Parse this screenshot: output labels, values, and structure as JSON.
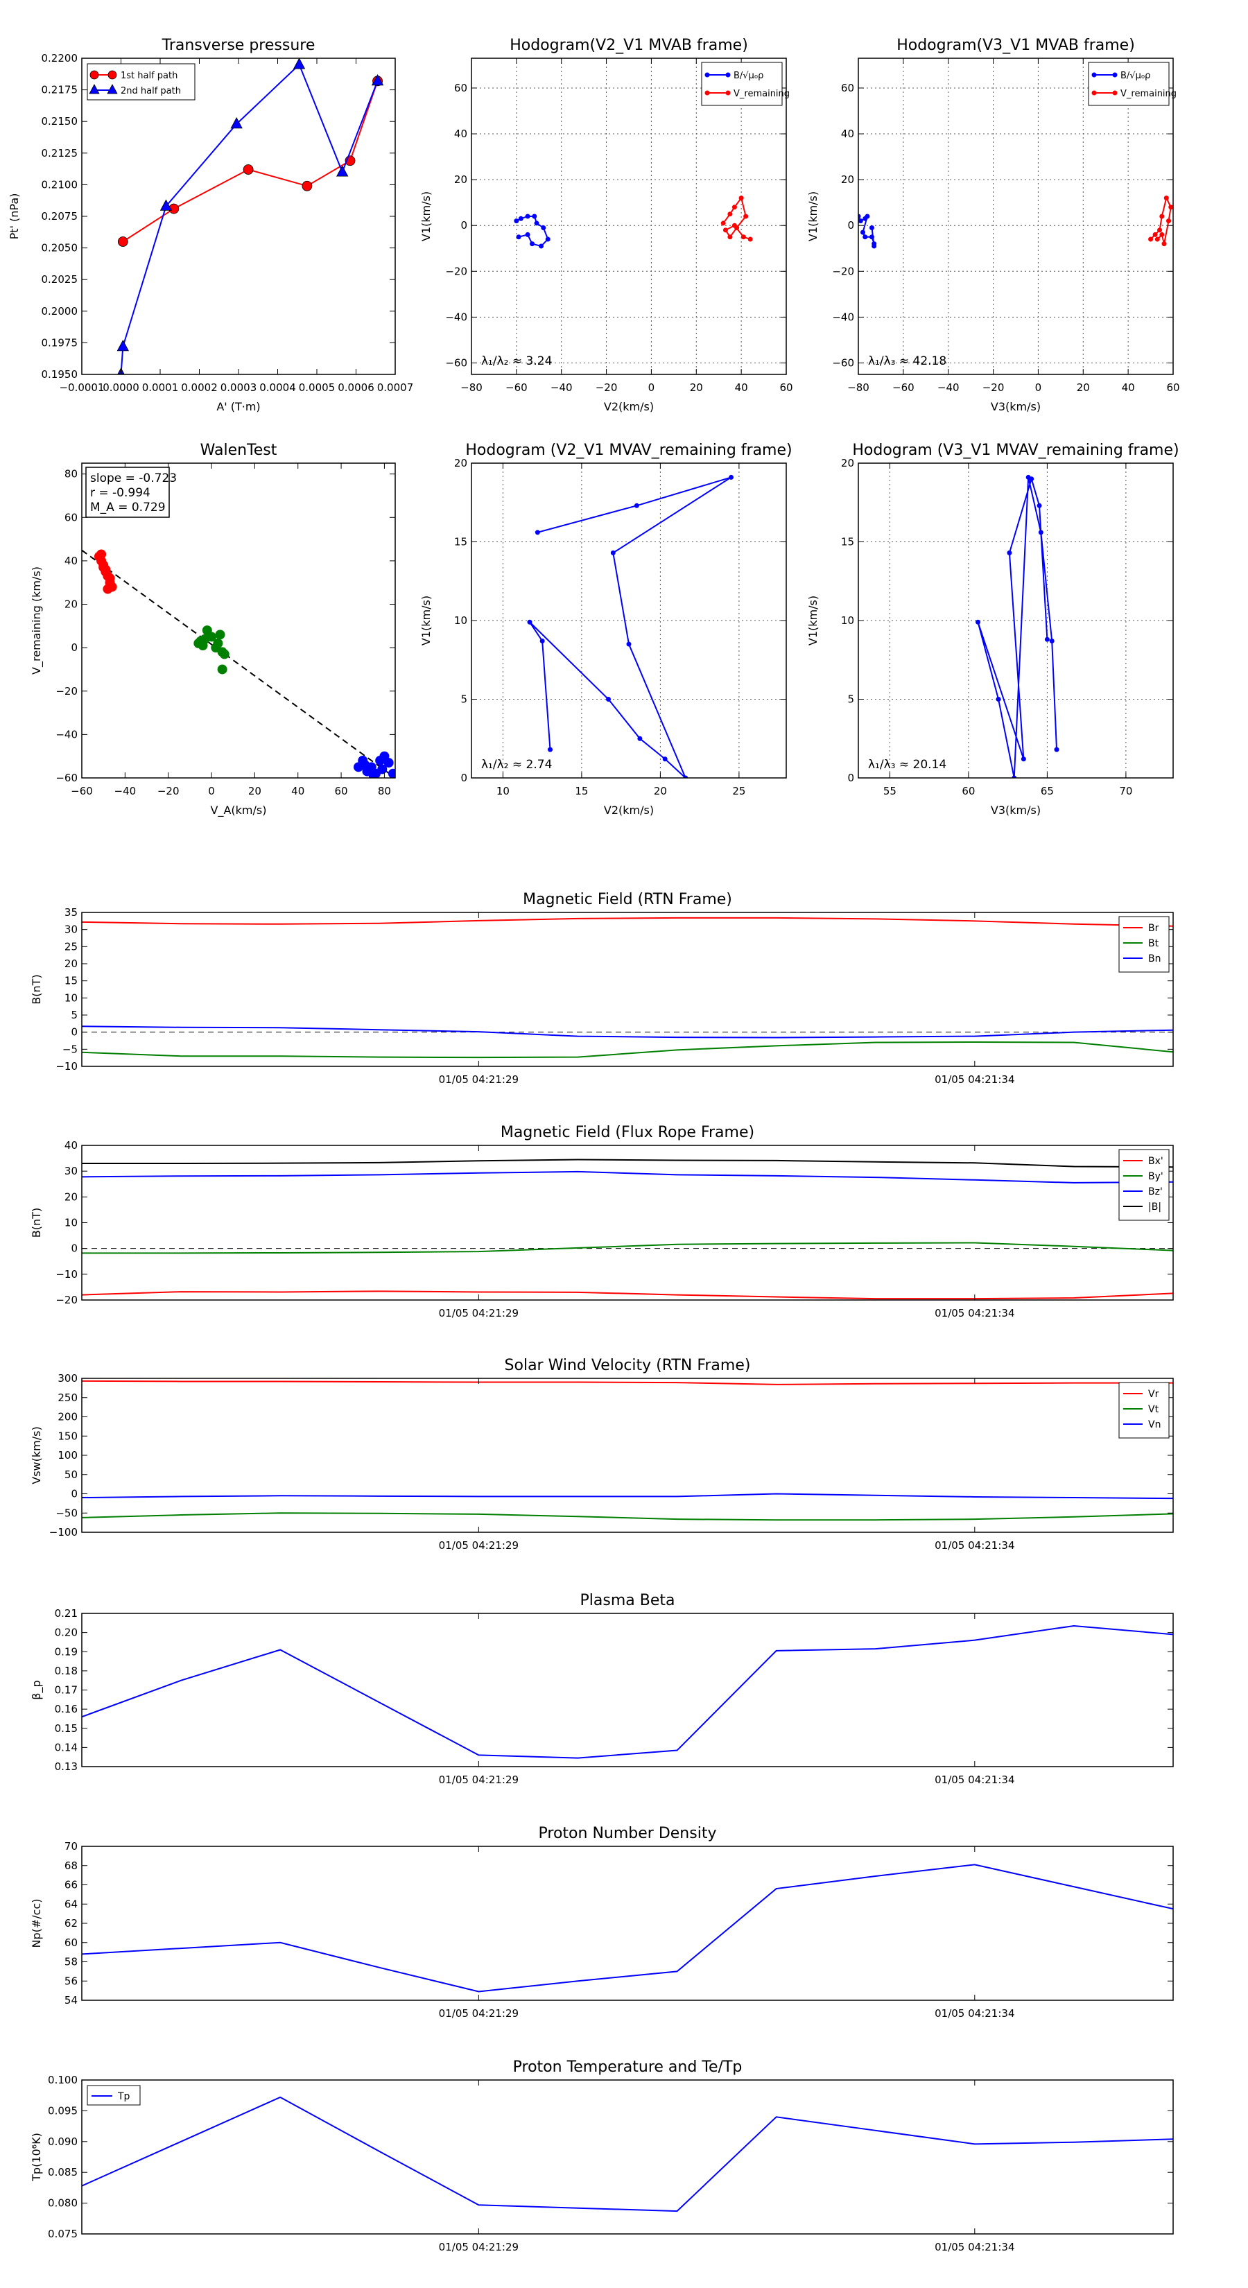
{
  "colors": {
    "red": "#ff0000",
    "green": "#008000",
    "blue": "#0000ff",
    "black": "#000000"
  },
  "chart_data": [
    {
      "id": "transverse_pressure",
      "type": "line",
      "title": "Transverse pressure",
      "xlabel": "A' (T·m)",
      "ylabel": "Pt' (nPa)",
      "xlim": [
        -0.0001,
        0.0007
      ],
      "ylim": [
        0.195,
        0.22
      ],
      "xticks": [
        -0.0001,
        0.0,
        0.0001,
        0.0002,
        0.0003,
        0.0004,
        0.0005,
        0.0006,
        0.0007
      ],
      "xtick_labels": [
        "−0.0001",
        "0.0000",
        "0.0001",
        "0.0002",
        "0.0003",
        "0.0004",
        "0.0005",
        "0.0006",
        "0.0007"
      ],
      "yticks": [
        0.195,
        0.1975,
        0.2,
        0.2025,
        0.205,
        0.2075,
        0.21,
        0.2125,
        0.215,
        0.2175,
        0.22
      ],
      "ytick_labels": [
        "0.1950",
        "0.1975",
        "0.2000",
        "0.2025",
        "0.2050",
        "0.2075",
        "0.2100",
        "0.2125",
        "0.2150",
        "0.2175",
        "0.2200"
      ],
      "legend": "upper-left",
      "grid": false,
      "series": [
        {
          "name": "1st half path",
          "color": "red",
          "marker": "circle",
          "x": [
            5e-06,
            0.000135,
            0.000325,
            0.000475,
            0.000585,
            0.000655
          ],
          "y": [
            0.2055,
            0.2081,
            0.2112,
            0.2099,
            0.2119,
            0.2182
          ]
        },
        {
          "name": "2nd half path",
          "color": "blue",
          "marker": "triangle",
          "x": [
            0.0,
            5e-06,
            0.000115,
            0.000295,
            0.000455,
            0.000565,
            0.000655
          ],
          "y": [
            0.195,
            0.1972,
            0.2083,
            0.2148,
            0.2195,
            0.211,
            0.2182
          ]
        }
      ]
    },
    {
      "id": "hodogram_v2v1_mvab",
      "type": "line",
      "title": "Hodogram(V2_V1 MVAB frame)",
      "xlabel": "V2(km/s)",
      "ylabel": "V1(km/s)",
      "xlim": [
        -80,
        60
      ],
      "ylim": [
        -65,
        73
      ],
      "grid": true,
      "legend": "upper-right",
      "xticks": [
        -80,
        -60,
        -40,
        -20,
        0,
        20,
        40,
        60
      ],
      "xtick_labels": [
        "−80",
        "−60",
        "−40",
        "−20",
        "0",
        "20",
        "40",
        "60"
      ],
      "yticks": [
        -60,
        -40,
        -20,
        0,
        20,
        40,
        60
      ],
      "ytick_labels": [
        "−60",
        "−40",
        "−20",
        "0",
        "20",
        "40",
        "60"
      ],
      "annotation": "λ₁/λ₂ ≈ 3.24",
      "series": [
        {
          "name": "B/√μ₀ρ",
          "color": "blue",
          "marker": "dot",
          "x": [
            -60,
            -58,
            -55,
            -52,
            -51,
            -48,
            -46,
            -49,
            -53,
            -55,
            -59
          ],
          "y": [
            2,
            3,
            4,
            4,
            1,
            -1,
            -6,
            -9,
            -8,
            -4,
            -5
          ]
        },
        {
          "name": "V_remaining",
          "color": "red",
          "marker": "dot",
          "x": [
            32,
            35,
            37,
            40,
            42,
            38,
            35,
            33,
            37,
            41,
            44
          ],
          "y": [
            1,
            5,
            8,
            12,
            4,
            -1,
            -5,
            -2,
            0,
            -5,
            -6
          ]
        }
      ]
    },
    {
      "id": "hodogram_v3v1_mvab",
      "type": "line",
      "title": "Hodogram(V3_V1 MVAB frame)",
      "xlabel": "V3(km/s)",
      "ylabel": "V1(km/s)",
      "xlim": [
        -80,
        60
      ],
      "ylim": [
        -65,
        73
      ],
      "grid": true,
      "legend": "upper-right",
      "xticks": [
        -80,
        -60,
        -40,
        -20,
        0,
        20,
        40,
        60
      ],
      "xtick_labels": [
        "−80",
        "−60",
        "−40",
        "−20",
        "0",
        "20",
        "40",
        "60"
      ],
      "yticks": [
        -60,
        -40,
        -20,
        0,
        20,
        40,
        60
      ],
      "ytick_labels": [
        "−60",
        "−40",
        "−20",
        "0",
        "20",
        "40",
        "60"
      ],
      "annotation": "λ₁/λ₃ ≈ 42.18",
      "series": [
        {
          "name": "B/√μ₀ρ",
          "color": "blue",
          "marker": "dot",
          "x": [
            -80,
            -79,
            -77,
            -76,
            -78,
            -77,
            -74,
            -73,
            -73,
            -74
          ],
          "y": [
            4,
            2,
            3,
            4,
            -3,
            -5,
            -5,
            -8,
            -9,
            -1
          ]
        },
        {
          "name": "V_remaining",
          "color": "red",
          "marker": "dot",
          "x": [
            50,
            52,
            54,
            55,
            57,
            59,
            58,
            56,
            55,
            53
          ],
          "y": [
            -6,
            -4,
            -2,
            4,
            12,
            8,
            2,
            -8,
            -4,
            -6
          ]
        }
      ]
    },
    {
      "id": "walen_test",
      "type": "scatter",
      "title": "WalenTest",
      "xlabel": "V_A(km/s)",
      "ylabel": "V_remaining (km/s)",
      "xlim": [
        -60,
        85
      ],
      "ylim": [
        -60,
        85
      ],
      "grid": false,
      "xticks": [
        -60,
        -40,
        -20,
        0,
        20,
        40,
        60,
        80
      ],
      "xtick_labels": [
        "−60",
        "−40",
        "−20",
        "0",
        "20",
        "40",
        "60",
        "80"
      ],
      "yticks": [
        -60,
        -40,
        -20,
        0,
        20,
        40,
        60,
        80
      ],
      "ytick_labels": [
        "−60",
        "−40",
        "−20",
        "0",
        "20",
        "40",
        "60",
        "80"
      ],
      "stats": [
        "slope = -0.723",
        "r = -0.994",
        "M_A = 0.729"
      ],
      "fit_line": {
        "slope": -0.723,
        "intercept": 1.5
      },
      "series": [
        {
          "name": "red",
          "color": "red",
          "x": [
            -52,
            -51,
            -50,
            -49,
            -48,
            -47,
            -46,
            -51,
            -50,
            -49,
            -47,
            -48
          ],
          "y": [
            42,
            40,
            38,
            36,
            33,
            30,
            28,
            43,
            37,
            35,
            32,
            27
          ]
        },
        {
          "name": "green",
          "color": "green",
          "x": [
            -6,
            -5,
            -4,
            -2,
            0,
            2,
            4,
            5,
            6,
            5,
            -3,
            3
          ],
          "y": [
            2,
            3,
            1,
            8,
            5,
            0,
            6,
            -2,
            -3,
            -10,
            4,
            2
          ]
        },
        {
          "name": "blue",
          "color": "blue",
          "x": [
            68,
            70,
            72,
            74,
            76,
            78,
            80,
            82,
            84,
            71,
            75,
            79
          ],
          "y": [
            -55,
            -52,
            -57,
            -55,
            -58,
            -52,
            -50,
            -53,
            -58,
            -54,
            -59,
            -56
          ]
        }
      ]
    },
    {
      "id": "hodogram_v2v1_mvav",
      "type": "line",
      "title": "Hodogram (V2_V1 MVAV_remaining frame)",
      "xlabel": "V2(km/s)",
      "ylabel": "V1(km/s)",
      "xlim": [
        8,
        28
      ],
      "ylim": [
        0,
        20
      ],
      "grid": true,
      "xticks": [
        10,
        15,
        20,
        25
      ],
      "xtick_labels": [
        "10",
        "15",
        "20",
        "25"
      ],
      "yticks": [
        0,
        5,
        10,
        15,
        20
      ],
      "ytick_labels": [
        "0",
        "5",
        "10",
        "15",
        "20"
      ],
      "annotation": "λ₁/λ₂ ≈ 2.74",
      "series": [
        {
          "name": "V",
          "color": "blue",
          "marker": "dot",
          "x": [
            13.0,
            12.5,
            11.7,
            16.7,
            18.7,
            20.3,
            21.6,
            18.0,
            17.0,
            24.5,
            18.5,
            12.2
          ],
          "y": [
            1.8,
            8.7,
            9.9,
            5.0,
            2.5,
            1.2,
            0.0,
            8.5,
            14.3,
            19.1,
            17.3,
            15.6
          ]
        }
      ]
    },
    {
      "id": "hodogram_v3v1_mvav",
      "type": "line",
      "title": "Hodogram (V3_V1 MVAV_remaining frame)",
      "xlabel": "V3(km/s)",
      "ylabel": "V1(km/s)",
      "xlim": [
        53,
        73
      ],
      "ylim": [
        0,
        20
      ],
      "grid": true,
      "xticks": [
        55,
        60,
        65,
        70
      ],
      "xtick_labels": [
        "55",
        "60",
        "65",
        "70"
      ],
      "yticks": [
        0,
        5,
        10,
        15,
        20
      ],
      "ytick_labels": [
        "0",
        "5",
        "10",
        "15",
        "20"
      ],
      "annotation": "λ₁/λ₃ ≈ 20.14",
      "series": [
        {
          "name": "V",
          "color": "blue",
          "marker": "dot",
          "x": [
            65.6,
            65.3,
            64.6,
            63.8,
            62.9,
            61.9,
            60.6,
            63.5,
            62.6,
            64.0,
            64.5,
            65.0
          ],
          "y": [
            1.8,
            8.7,
            15.6,
            19.1,
            0.0,
            5.0,
            9.9,
            1.2,
            14.3,
            19.0,
            17.3,
            8.8
          ]
        }
      ]
    },
    {
      "id": "magnetic_field_rtn",
      "type": "line",
      "title": "Magnetic Field (RTN Frame)",
      "ylabel": "B(nT)",
      "ylim": [
        -10,
        35
      ],
      "yticks": [
        -10,
        -5,
        0,
        5,
        10,
        15,
        20,
        25,
        30,
        35
      ],
      "ytick_labels": [
        "−10",
        "−5",
        "0",
        "5",
        "10",
        "15",
        "20",
        "25",
        "30",
        "35"
      ],
      "x_points": 12,
      "xtick_index": [
        4,
        9
      ],
      "xtick_labels": [
        "01/05 04:21:29",
        "01/05 04:21:34"
      ],
      "zero_line": true,
      "legend": "upper-right",
      "series": [
        {
          "name": "Br",
          "color": "red",
          "values": [
            32.2,
            31.7,
            31.6,
            31.8,
            32.6,
            33.2,
            33.4,
            33.4,
            33.1,
            32.5,
            31.6,
            31.0
          ]
        },
        {
          "name": "Bt",
          "color": "green",
          "values": [
            -5.9,
            -7.0,
            -7.0,
            -7.3,
            -7.4,
            -7.3,
            -5.2,
            -4.0,
            -3.0,
            -2.9,
            -3.0,
            -5.8
          ]
        },
        {
          "name": "Bn",
          "color": "blue",
          "values": [
            1.7,
            1.4,
            1.3,
            0.7,
            0.1,
            -1.2,
            -1.5,
            -1.6,
            -1.4,
            -1.2,
            0.0,
            0.6
          ]
        }
      ]
    },
    {
      "id": "magnetic_field_flux_rope",
      "type": "line",
      "title": "Magnetic Field (Flux Rope Frame)",
      "ylabel": "B(nT)",
      "ylim": [
        -20,
        40
      ],
      "yticks": [
        -20,
        -10,
        0,
        10,
        20,
        30,
        40
      ],
      "ytick_labels": [
        "−20",
        "−10",
        "0",
        "10",
        "20",
        "30",
        "40"
      ],
      "x_points": 12,
      "xtick_index": [
        4,
        9
      ],
      "xtick_labels": [
        "01/05 04:21:29",
        "01/05 04:21:34"
      ],
      "zero_line": true,
      "legend": "upper-right",
      "series": [
        {
          "name": "Bx'",
          "color": "red",
          "values": [
            -18.0,
            -16.8,
            -16.9,
            -16.6,
            -16.9,
            -17.0,
            -18.0,
            -18.8,
            -19.5,
            -19.5,
            -19.2,
            -17.4
          ]
        },
        {
          "name": "By'",
          "color": "green",
          "values": [
            -1.8,
            -1.8,
            -1.7,
            -1.5,
            -1.2,
            0.2,
            1.6,
            1.9,
            2.1,
            2.2,
            0.8,
            -0.8
          ]
        },
        {
          "name": "Bz'",
          "color": "blue",
          "values": [
            27.8,
            28.1,
            28.2,
            28.6,
            29.3,
            29.8,
            28.6,
            28.2,
            27.6,
            26.6,
            25.5,
            25.8
          ]
        },
        {
          "name": "|B|",
          "color": "black",
          "values": [
            33.0,
            33.0,
            33.1,
            33.3,
            34.0,
            34.5,
            34.2,
            34.1,
            33.6,
            33.2,
            31.8,
            31.6
          ]
        }
      ]
    },
    {
      "id": "solar_wind_velocity",
      "type": "line",
      "title": "Solar Wind Velocity (RTN Frame)",
      "ylabel": "Vsw(km/s)",
      "ylim": [
        -100,
        300
      ],
      "yticks": [
        -100,
        -50,
        0,
        50,
        100,
        150,
        200,
        250,
        300
      ],
      "ytick_labels": [
        "−100",
        "−50",
        "0",
        "50",
        "100",
        "150",
        "200",
        "250",
        "300"
      ],
      "x_points": 12,
      "xtick_index": [
        4,
        9
      ],
      "xtick_labels": [
        "01/05 04:21:29",
        "01/05 04:21:34"
      ],
      "legend": "upper-right",
      "series": [
        {
          "name": "Vr",
          "color": "red",
          "values": [
            293,
            292,
            292,
            291,
            290,
            290,
            289,
            284,
            286,
            287,
            288,
            288
          ]
        },
        {
          "name": "Vt",
          "color": "green",
          "values": [
            -62,
            -55,
            -50,
            -51,
            -53,
            -59,
            -66,
            -68,
            -68,
            -66,
            -60,
            -52
          ]
        },
        {
          "name": "Vn",
          "color": "blue",
          "values": [
            -10,
            -7,
            -5,
            -6,
            -7,
            -7,
            -7,
            0,
            -4,
            -8,
            -10,
            -12
          ]
        }
      ]
    },
    {
      "id": "plasma_beta",
      "type": "line",
      "title": "Plasma Beta",
      "ylabel": "β_p",
      "ylim": [
        0.13,
        0.21
      ],
      "yticks": [
        0.13,
        0.14,
        0.15,
        0.16,
        0.17,
        0.18,
        0.19,
        0.2,
        0.21
      ],
      "ytick_labels": [
        "0.13",
        "0.14",
        "0.15",
        "0.16",
        "0.17",
        "0.18",
        "0.19",
        "0.20",
        "0.21"
      ],
      "x_points": 12,
      "xtick_index": [
        4,
        9
      ],
      "xtick_labels": [
        "01/05 04:21:29",
        "01/05 04:21:34"
      ],
      "series": [
        {
          "name": "beta",
          "color": "blue",
          "values": [
            0.156,
            0.175,
            0.191,
            0.1635,
            0.136,
            0.1345,
            0.1385,
            0.1905,
            0.1915,
            0.196,
            0.2035,
            0.199
          ]
        }
      ]
    },
    {
      "id": "proton_number_density",
      "type": "line",
      "title": "Proton Number Density",
      "ylabel": "Np(#/cc)",
      "ylim": [
        54,
        70
      ],
      "yticks": [
        54,
        56,
        58,
        60,
        62,
        64,
        66,
        68,
        70
      ],
      "ytick_labels": [
        "54",
        "56",
        "58",
        "60",
        "62",
        "64",
        "66",
        "68",
        "70"
      ],
      "x_points": 12,
      "xtick_index": [
        4,
        9
      ],
      "xtick_labels": [
        "01/05 04:21:29",
        "01/05 04:21:34"
      ],
      "series": [
        {
          "name": "Np",
          "color": "blue",
          "values": [
            58.8,
            59.4,
            60.0,
            57.4,
            54.9,
            56.0,
            57.0,
            65.6,
            66.9,
            68.1,
            65.8,
            63.5
          ]
        }
      ]
    },
    {
      "id": "proton_temperature",
      "type": "line",
      "title": "Proton Temperature and Te/Tp",
      "ylabel": "Tp(10⁶K)",
      "ylim": [
        0.075,
        0.1
      ],
      "yticks": [
        0.075,
        0.08,
        0.085,
        0.09,
        0.095,
        0.1
      ],
      "ytick_labels": [
        "0.075",
        "0.080",
        "0.085",
        "0.090",
        "0.095",
        "0.100"
      ],
      "x_points": 12,
      "xtick_index": [
        4,
        9
      ],
      "xtick_labels": [
        "01/05 04:21:29",
        "01/05 04:21:34"
      ],
      "legend": "upper-left",
      "series": [
        {
          "name": "Tp",
          "color": "blue",
          "values": [
            0.0828,
            0.09,
            0.0972,
            0.0884,
            0.0797,
            0.0792,
            0.0787,
            0.094,
            0.0918,
            0.0896,
            0.0899,
            0.0904
          ]
        }
      ]
    }
  ]
}
